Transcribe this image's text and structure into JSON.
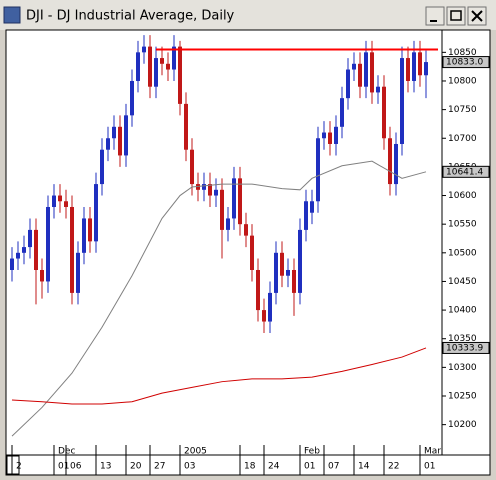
{
  "window": {
    "title": "DJI - DJ Industrial Average, Daily"
  },
  "chart_data": {
    "type": "candlestick",
    "xlim": [
      -1,
      72
    ],
    "ylim": [
      10147,
      10889
    ],
    "yticks": [
      10200,
      10250,
      10300,
      10350,
      10400,
      10450,
      10500,
      10550,
      10600,
      10650,
      10700,
      10750,
      10800,
      10850
    ],
    "xticks": [
      {
        "value": 0,
        "label": "2"
      },
      {
        "value": 7,
        "label": "01"
      },
      {
        "value": 9,
        "label": "06"
      },
      {
        "value": 14,
        "label": "13"
      },
      {
        "value": 19,
        "label": "20"
      },
      {
        "value": 23,
        "label": "27"
      },
      {
        "value": 28,
        "label": "03"
      },
      {
        "value": 38,
        "label": "18"
      },
      {
        "value": 42,
        "label": "24"
      },
      {
        "value": 48,
        "label": "01"
      },
      {
        "value": 52,
        "label": "07"
      },
      {
        "value": 57,
        "label": "14"
      },
      {
        "value": 62,
        "label": "22"
      },
      {
        "value": 68,
        "label": "01"
      }
    ],
    "month_labels": [
      {
        "value": 7,
        "label": "Dec"
      },
      {
        "value": 28,
        "label": "2005"
      },
      {
        "value": 48,
        "label": "Feb"
      },
      {
        "value": 68,
        "label": "Mar"
      }
    ],
    "up_color": "#1f2fbf",
    "down_color": "#c01818",
    "open": [
      10470,
      10490,
      10500,
      10510,
      10540,
      10470,
      10450,
      10580,
      10600,
      10590,
      10580,
      10430,
      10500,
      10560,
      10520,
      10620,
      10680,
      10700,
      10720,
      10670,
      10740,
      10800,
      10850,
      10860,
      10790,
      10840,
      10830,
      10820,
      10860,
      10760,
      10680,
      10620,
      10610,
      10620,
      10600,
      10610,
      10540,
      10560,
      10630,
      10550,
      10530,
      10470,
      10400,
      10380,
      10430,
      10500,
      10460,
      10470,
      10430,
      10540,
      10570,
      10590,
      10700,
      10710,
      10690,
      10720,
      10770,
      10820,
      10830,
      10790,
      10850,
      10780,
      10790,
      10700,
      10620,
      10690,
      10840,
      10800,
      10850,
      10810
    ],
    "high": [
      10510,
      10520,
      10530,
      10560,
      10560,
      10490,
      10600,
      10620,
      10620,
      10610,
      10600,
      10520,
      10580,
      10580,
      10640,
      10700,
      10720,
      10740,
      10740,
      10760,
      10820,
      10870,
      10880,
      10880,
      10860,
      10860,
      10850,
      10880,
      10870,
      10780,
      10700,
      10640,
      10640,
      10640,
      10630,
      10630,
      10580,
      10650,
      10650,
      10570,
      10550,
      10490,
      10420,
      10450,
      10520,
      10520,
      10490,
      10490,
      10560,
      10610,
      10610,
      10720,
      10730,
      10730,
      10740,
      10790,
      10840,
      10850,
      10850,
      10870,
      10870,
      10810,
      10810,
      10720,
      10710,
      10860,
      10860,
      10870,
      10870,
      10853
    ],
    "low": [
      10450,
      10470,
      10480,
      10490,
      10410,
      10420,
      10430,
      10560,
      10570,
      10560,
      10410,
      10410,
      10480,
      10500,
      10500,
      10600,
      10660,
      10680,
      10650,
      10650,
      10720,
      10780,
      10830,
      10770,
      10770,
      10810,
      10800,
      10800,
      10740,
      10660,
      10600,
      10590,
      10590,
      10580,
      10580,
      10490,
      10520,
      10540,
      10530,
      10510,
      10450,
      10380,
      10360,
      10360,
      10410,
      10440,
      10440,
      10390,
      10410,
      10520,
      10550,
      10570,
      10680,
      10670,
      10670,
      10700,
      10750,
      10800,
      10770,
      10770,
      10760,
      10760,
      10680,
      10600,
      10600,
      10670,
      10780,
      10780,
      10790,
      10770
    ],
    "close": [
      10490,
      10500,
      10510,
      10540,
      10470,
      10450,
      10580,
      10600,
      10590,
      10580,
      10430,
      10500,
      10560,
      10520,
      10620,
      10680,
      10700,
      10720,
      10670,
      10740,
      10800,
      10850,
      10860,
      10790,
      10840,
      10830,
      10820,
      10860,
      10760,
      10680,
      10620,
      10610,
      10620,
      10600,
      10610,
      10540,
      10560,
      10630,
      10550,
      10530,
      10470,
      10400,
      10380,
      10430,
      10500,
      10460,
      10470,
      10430,
      10540,
      10590,
      10590,
      10700,
      10710,
      10690,
      10720,
      10770,
      10820,
      10830,
      10790,
      10850,
      10780,
      10790,
      10700,
      10620,
      10690,
      10840,
      10800,
      10850,
      10810,
      10833
    ],
    "moving_averages": [
      {
        "color": "#808080",
        "x": [
          0,
          5,
          10,
          15,
          20,
          25,
          28,
          30,
          35,
          40,
          45,
          48,
          50,
          55,
          60,
          65,
          69
        ],
        "values": [
          10180,
          10230,
          10290,
          10370,
          10460,
          10560,
          10600,
          10615,
          10620,
          10620,
          10612,
          10610,
          10630,
          10652,
          10660,
          10630,
          10641.4
        ]
      },
      {
        "color": "#d00000",
        "x": [
          0,
          5,
          10,
          15,
          20,
          25,
          30,
          35,
          40,
          45,
          50,
          55,
          60,
          65,
          69
        ],
        "values": [
          10243,
          10240,
          10236,
          10236,
          10240,
          10255,
          10265,
          10275,
          10280,
          10280,
          10283,
          10293,
          10305,
          10318,
          10333.9
        ]
      }
    ],
    "lines": [
      {
        "value": 10855,
        "from": 24,
        "to": 71,
        "color": "#ff0000"
      }
    ],
    "highlights": [
      {
        "value": 10833,
        "label": "10833.0"
      },
      {
        "value": 10641.4,
        "label": "10641.4"
      },
      {
        "value": 10333.9,
        "label": "10333.9"
      }
    ]
  }
}
